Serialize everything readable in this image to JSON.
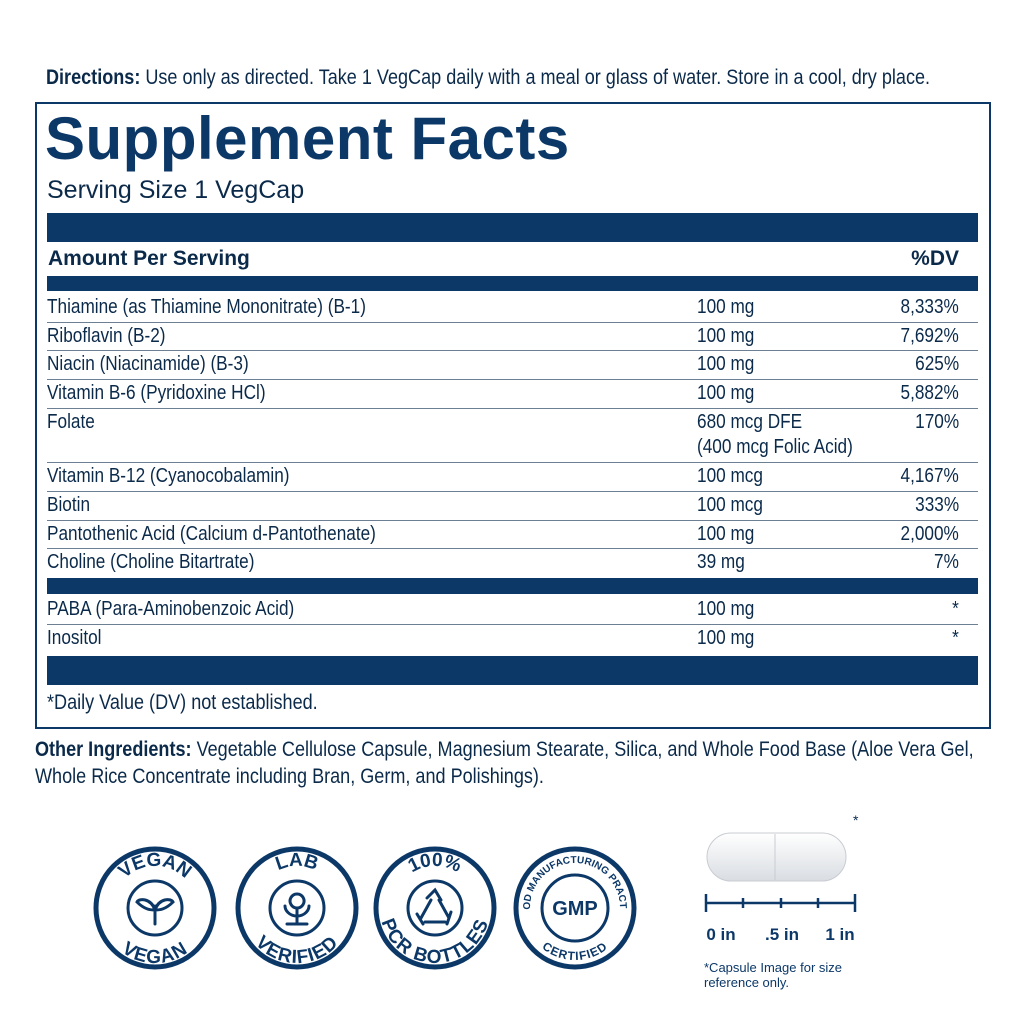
{
  "directions": {
    "label": "Directions:",
    "text": "Use only as directed. Take 1 VegCap daily with a meal or glass of water. Store in a cool, dry place."
  },
  "facts": {
    "title": "Supplement Facts",
    "serving_size": "Serving Size 1 VegCap",
    "header": {
      "amount": "Amount Per Serving",
      "dv": "%DV"
    },
    "groups": [
      [
        {
          "name": "Thiamine (as Thiamine Mononitrate) (B-1)",
          "amount": "100 mg",
          "dv": "8,333%"
        },
        {
          "name": "Riboflavin (B-2)",
          "amount": "100 mg",
          "dv": "7,692%"
        },
        {
          "name": "Niacin (Niacinamide) (B-3)",
          "amount": "100 mg",
          "dv": "625%"
        },
        {
          "name": "Vitamin B-6 (Pyridoxine HCl)",
          "amount": "100 mg",
          "dv": "5,882%"
        },
        {
          "name": "Folate",
          "amount": "680 mcg DFE",
          "amount_detail": "(400 mcg Folic Acid)",
          "dv": "170%"
        },
        {
          "name": "Vitamin B-12 (Cyanocobalamin)",
          "amount": "100 mcg",
          "dv": "4,167%"
        },
        {
          "name": "Biotin",
          "amount": "100 mcg",
          "dv": "333%"
        },
        {
          "name": "Pantothenic Acid (Calcium d-Pantothenate)",
          "amount": "100 mg",
          "dv": "2,000%"
        },
        {
          "name": "Choline (Choline Bitartrate)",
          "amount": "39 mg",
          "dv": "7%"
        }
      ],
      [
        {
          "name": "PABA (Para-Aminobenzoic Acid)",
          "amount": "100 mg",
          "dv": "*"
        },
        {
          "name": "Inositol",
          "amount": "100 mg",
          "dv": "*"
        }
      ]
    ],
    "footnote": "*Daily Value (DV) not established."
  },
  "other_ingredients": {
    "label": "Other Ingredients:",
    "text": "Vegetable Cellulose Capsule, Magnesium Stearate, Silica, and Whole Food Base (Aloe Vera Gel, Whole Rice Concentrate including Bran, Germ, and Polishings)."
  },
  "badges": [
    {
      "top": "VEGAN",
      "bottom": "VEGAN"
    },
    {
      "top": "LAB",
      "bottom": "VERIFIED"
    },
    {
      "top": "100%",
      "bottom": "PCR BOTTLES"
    },
    {
      "top": "GOOD MANUFACTURING PRACTICE",
      "center": "GMP",
      "bottom": "CERTIFIED"
    }
  ],
  "capsule": {
    "asterisk": "*",
    "scale": [
      "0 in",
      ".5 in",
      "1 in"
    ],
    "note": "*Capsule Image for size reference only."
  }
}
